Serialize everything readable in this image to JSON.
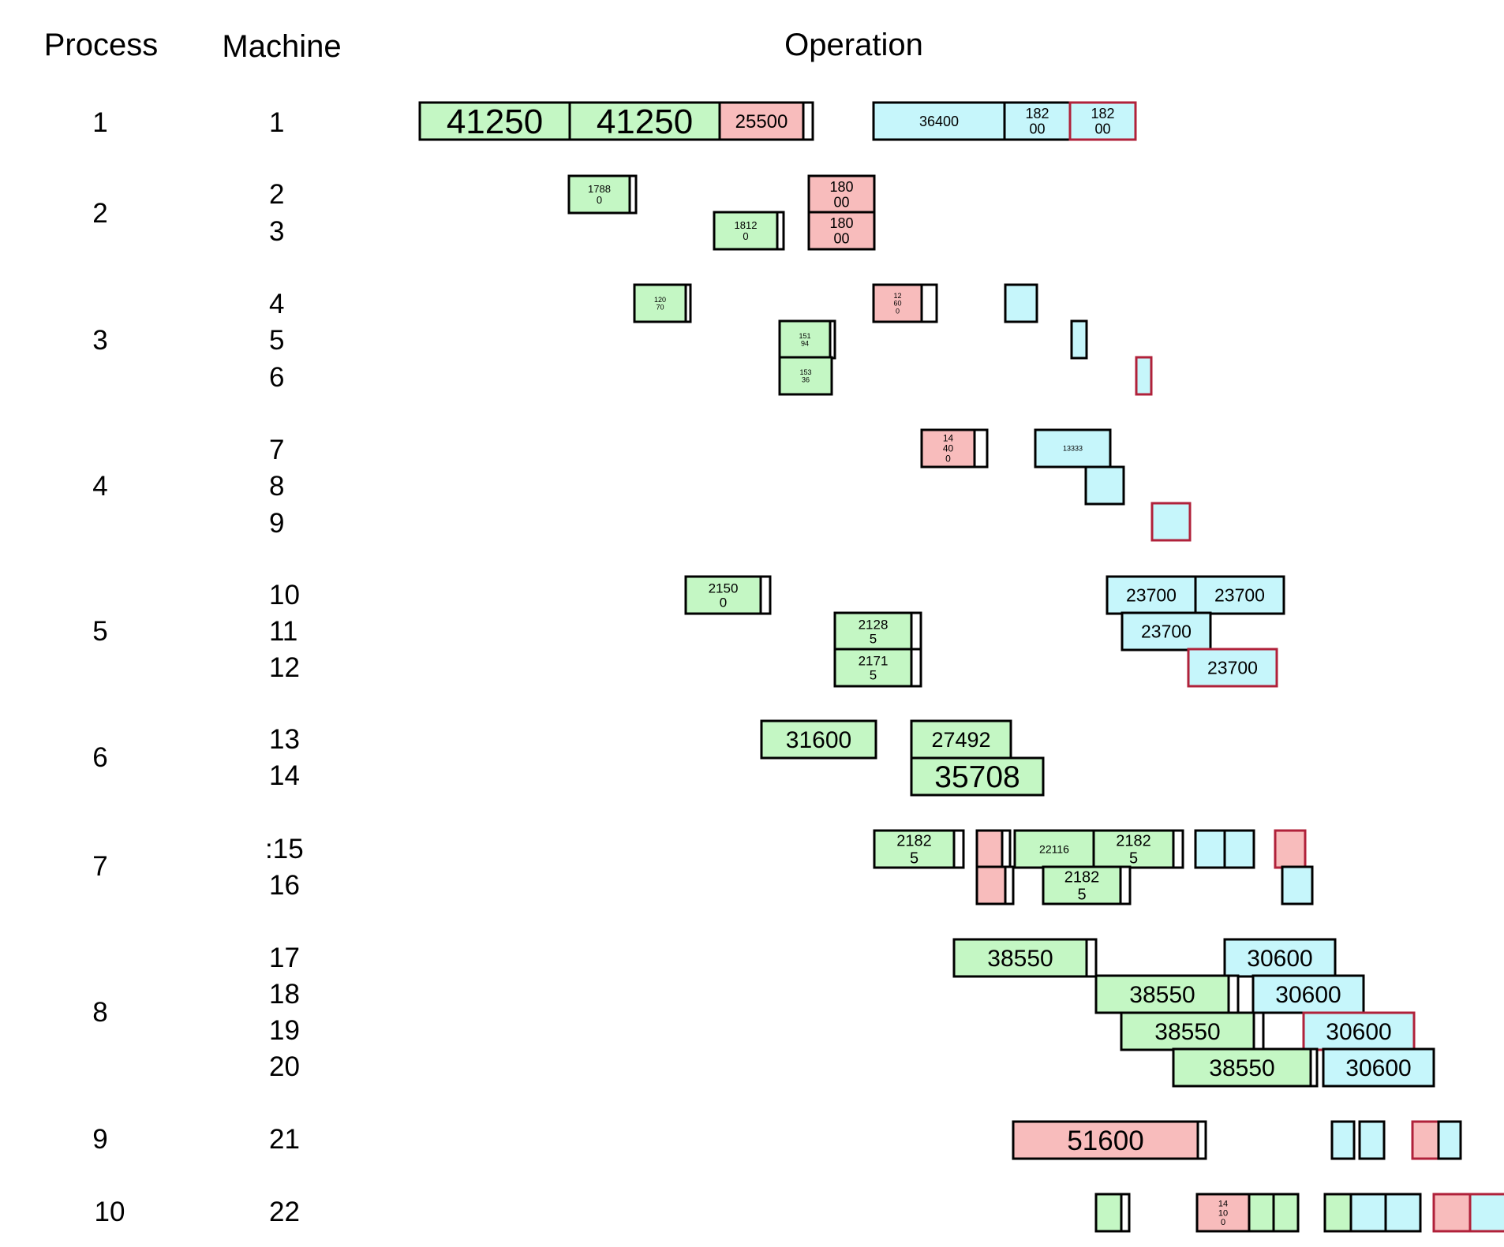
{
  "headers": {
    "process": "Process",
    "machine": "Machine",
    "operation": "Operation"
  },
  "colors": {
    "green": "#c4f7c4",
    "red": "#f8bcbc",
    "blue": "#c6f6fb",
    "stroke": "#000000",
    "highlight_stroke": "#b0213a"
  },
  "processes": [
    {
      "label": "1",
      "machines": [
        "1"
      ]
    },
    {
      "label": "2",
      "machines": [
        "2",
        "3"
      ]
    },
    {
      "label": "3",
      "machines": [
        "4",
        "5",
        "6"
      ]
    },
    {
      "label": "4",
      "machines": [
        "7",
        "8",
        "9"
      ]
    },
    {
      "label": "5",
      "machines": [
        "10",
        "11",
        "12"
      ]
    },
    {
      "label": "6",
      "machines": [
        "13",
        "14"
      ]
    },
    {
      "label": "7",
      "machines": [
        ":15",
        "16"
      ]
    },
    {
      "label": "8",
      "machines": [
        "17",
        "18",
        "19",
        "20"
      ]
    },
    {
      "label": "9",
      "machines": [
        "21"
      ]
    },
    {
      "label": "10",
      "machines": [
        "22"
      ]
    }
  ],
  "operations": [
    {
      "machine": "1",
      "color": "green",
      "label": "41250"
    },
    {
      "machine": "1",
      "color": "green",
      "label": "41250"
    },
    {
      "machine": "1",
      "color": "red",
      "label": "25500"
    },
    {
      "machine": "1",
      "color": "blue",
      "label": "36400"
    },
    {
      "machine": "1",
      "color": "blue",
      "label": "182\n00"
    },
    {
      "machine": "1",
      "color": "blue",
      "label": "182\n00",
      "highlight": true
    },
    {
      "machine": "2",
      "color": "green",
      "label": "1788\n0"
    },
    {
      "machine": "2",
      "color": "red",
      "label": "180\n00"
    },
    {
      "machine": "3",
      "color": "green",
      "label": "1812\n0"
    },
    {
      "machine": "3",
      "color": "red",
      "label": "180\n00"
    },
    {
      "machine": "4",
      "color": "green",
      "label": "120\n70"
    },
    {
      "machine": "4",
      "color": "red",
      "label": "12\n60\n0"
    },
    {
      "machine": "4",
      "color": "blue",
      "label": ""
    },
    {
      "machine": "5",
      "color": "green",
      "label": "151\n94"
    },
    {
      "machine": "5",
      "color": "blue",
      "label": ""
    },
    {
      "machine": "6",
      "color": "green",
      "label": "153\n36"
    },
    {
      "machine": "6",
      "color": "blue",
      "label": "",
      "highlight": true
    },
    {
      "machine": "7",
      "color": "red",
      "label": "14\n40\n0"
    },
    {
      "machine": "7",
      "color": "blue",
      "label": "13333"
    },
    {
      "machine": "8",
      "color": "blue",
      "label": ""
    },
    {
      "machine": "9",
      "color": "blue",
      "label": "",
      "highlight": true
    },
    {
      "machine": "10",
      "color": "green",
      "label": "2150\n0"
    },
    {
      "machine": "10",
      "color": "blue",
      "label": "23700"
    },
    {
      "machine": "10",
      "color": "blue",
      "label": "23700"
    },
    {
      "machine": "11",
      "color": "green",
      "label": "2128\n5"
    },
    {
      "machine": "11",
      "color": "blue",
      "label": "23700"
    },
    {
      "machine": "12",
      "color": "green",
      "label": "2171\n5"
    },
    {
      "machine": "12",
      "color": "blue",
      "label": "23700",
      "highlight": true
    },
    {
      "machine": "13",
      "color": "green",
      "label": "31600"
    },
    {
      "machine": "13",
      "color": "green",
      "label": "27492"
    },
    {
      "machine": "14",
      "color": "green",
      "label": "35708"
    },
    {
      "machine": "15",
      "color": "green",
      "label": "2182\n5"
    },
    {
      "machine": "15",
      "color": "red",
      "label": ""
    },
    {
      "machine": "15",
      "color": "green",
      "label": "22116"
    },
    {
      "machine": "15",
      "color": "green",
      "label": "2182\n5"
    },
    {
      "machine": "15",
      "color": "blue",
      "label": ""
    },
    {
      "machine": "15",
      "color": "blue",
      "label": ""
    },
    {
      "machine": "15",
      "color": "red",
      "label": "",
      "highlight": true
    },
    {
      "machine": "16",
      "color": "red",
      "label": ""
    },
    {
      "machine": "16",
      "color": "green",
      "label": "2182\n5"
    },
    {
      "machine": "16",
      "color": "blue",
      "label": ""
    },
    {
      "machine": "17",
      "color": "green",
      "label": "38550"
    },
    {
      "machine": "17",
      "color": "blue",
      "label": "30600"
    },
    {
      "machine": "18",
      "color": "green",
      "label": "38550"
    },
    {
      "machine": "18",
      "color": "blue",
      "label": "30600"
    },
    {
      "machine": "19",
      "color": "green",
      "label": "38550"
    },
    {
      "machine": "19",
      "color": "blue",
      "label": "30600",
      "highlight": true
    },
    {
      "machine": "20",
      "color": "green",
      "label": "38550"
    },
    {
      "machine": "20",
      "color": "blue",
      "label": "30600"
    },
    {
      "machine": "21",
      "color": "red",
      "label": "51600"
    },
    {
      "machine": "21",
      "color": "blue",
      "label": ""
    },
    {
      "machine": "21",
      "color": "blue",
      "label": ""
    },
    {
      "machine": "21",
      "color": "red",
      "label": "",
      "highlight": true
    },
    {
      "machine": "21",
      "color": "blue",
      "label": ""
    },
    {
      "machine": "22",
      "color": "green",
      "label": ""
    },
    {
      "machine": "22",
      "color": "red",
      "label": "14\n10\n0"
    },
    {
      "machine": "22",
      "color": "green",
      "label": ""
    },
    {
      "machine": "22",
      "color": "green",
      "label": ""
    },
    {
      "machine": "22",
      "color": "green",
      "label": ""
    },
    {
      "machine": "22",
      "color": "blue",
      "label": ""
    },
    {
      "machine": "22",
      "color": "blue",
      "label": ""
    },
    {
      "machine": "22",
      "color": "red",
      "label": "",
      "highlight": true
    },
    {
      "machine": "22",
      "color": "blue",
      "label": "",
      "highlight": true
    }
  ]
}
